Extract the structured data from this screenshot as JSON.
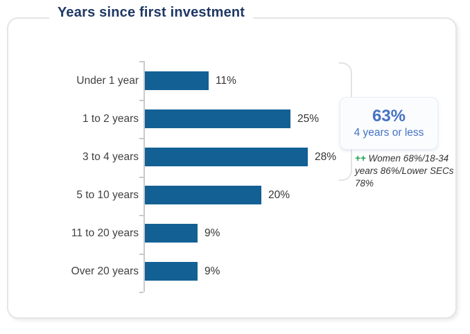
{
  "chart_data": {
    "type": "bar",
    "orientation": "horizontal",
    "title": "Years since first investment",
    "categories": [
      "Under 1 year",
      "1 to 2 years",
      "3 to 4 years",
      "5 to 10 years",
      "11 to 20 years",
      "Over 20 years"
    ],
    "values": [
      11,
      25,
      28,
      20,
      9,
      9
    ],
    "value_labels": [
      "11%",
      "25%",
      "28%",
      "20%",
      "9%",
      "9%"
    ],
    "xlim": [
      0,
      30
    ],
    "grid": false,
    "legend": false,
    "bar_color": "#136094",
    "axis_color": "#c9c9c9"
  },
  "callout": {
    "headline": "63%",
    "subline": "4 years or less",
    "note_prefix": "++",
    "note_text": "Women 68%/18-34 years 86%/Lower SECs 78%"
  },
  "colors": {
    "title": "#1f3864",
    "bar": "#136094",
    "category_label": "#404040",
    "value_label": "#333333",
    "callout_text": "#4472c4",
    "note_prefix": "#21a04d",
    "card_border": "#e5e5e5"
  }
}
